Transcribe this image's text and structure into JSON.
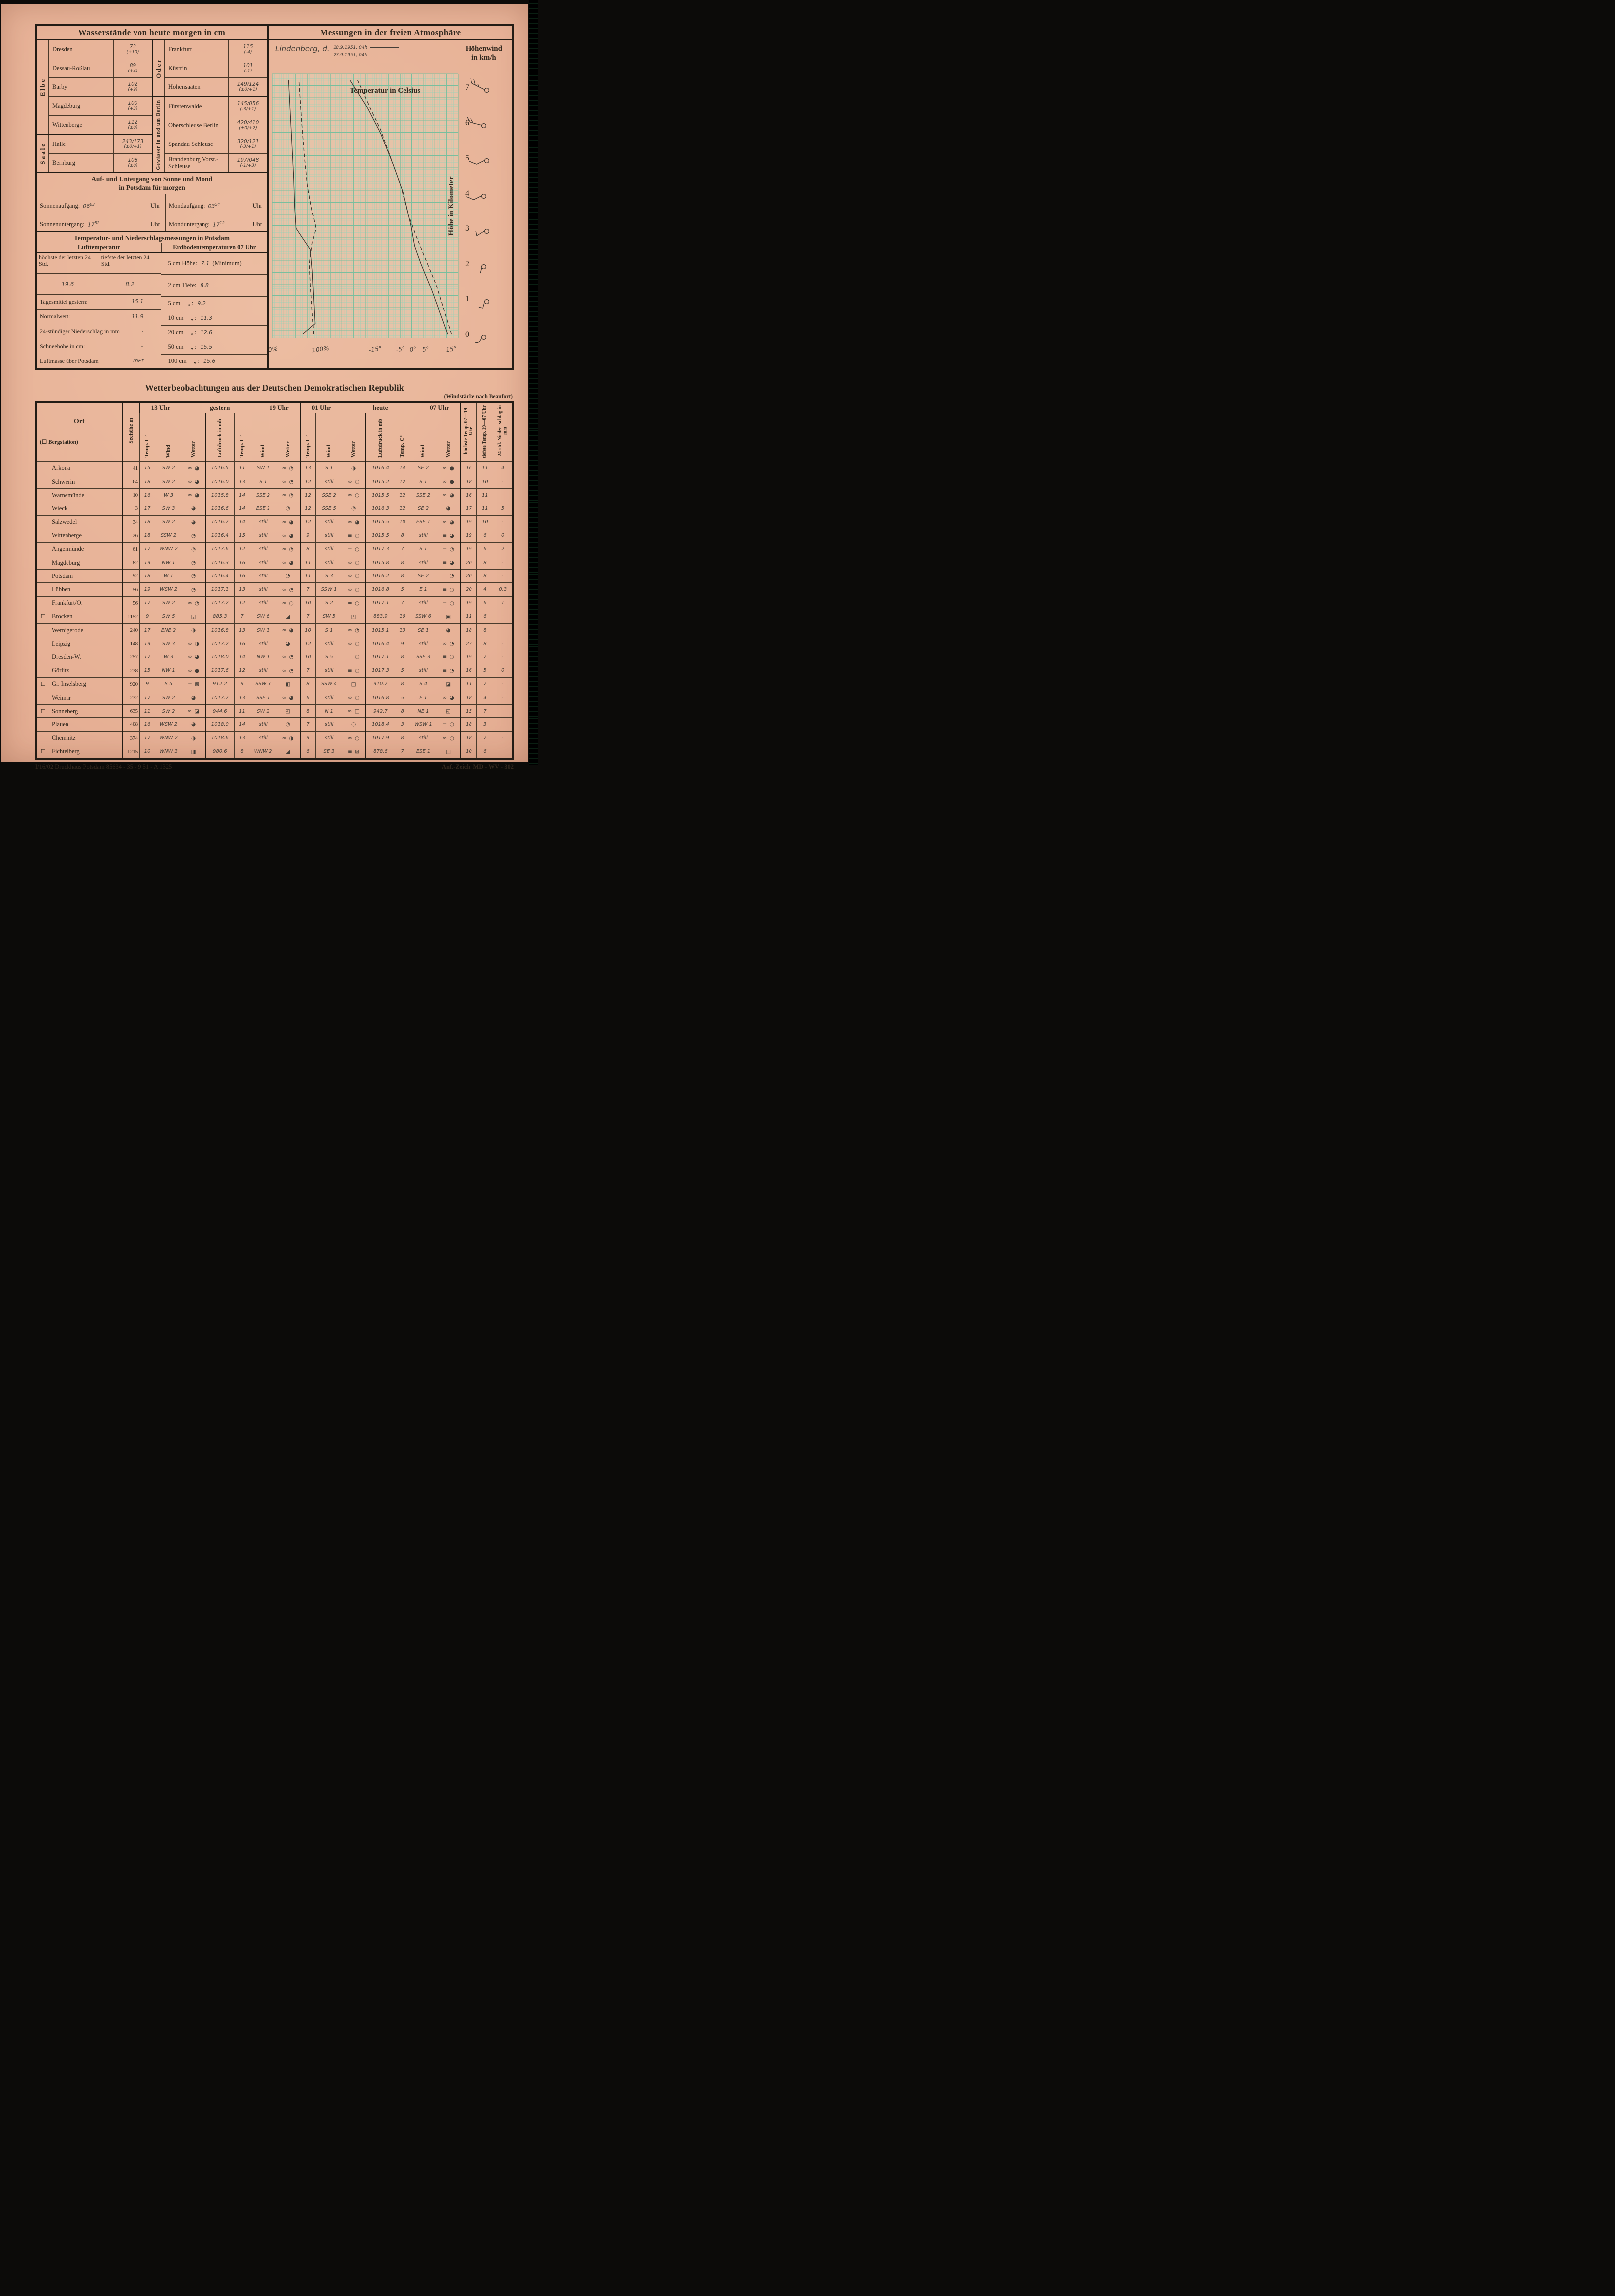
{
  "colors": {
    "paper": "#e9b69b",
    "ink": "#33291f",
    "pencil": "#453e37",
    "grid_minor": "#a4d4ba",
    "grid_major": "#7fc2a2",
    "frame": "#221c15"
  },
  "water": {
    "title": "Wasserstände von heute morgen in cm",
    "groups": [
      {
        "river": "Elbe",
        "rows": [
          {
            "name": "Dresden",
            "value": "73",
            "change": "(+10)"
          },
          {
            "name": "Dessau-Roßlau",
            "value": "89",
            "change": "(+4)"
          },
          {
            "name": "Barby",
            "value": "102",
            "change": "(+9)"
          },
          {
            "name": "Magdeburg",
            "value": "100",
            "change": "(+3)"
          },
          {
            "name": "Wittenberge",
            "value": "112",
            "change": "(±0)"
          }
        ]
      },
      {
        "river": "Saale",
        "rows": [
          {
            "name": "Halle",
            "value": "243/173",
            "change": "(±0/+1)"
          },
          {
            "name": "Bernburg",
            "value": "108",
            "change": "(±0)"
          }
        ]
      },
      {
        "river": "Oder",
        "rows": [
          {
            "name": "Frankfurt",
            "value": "115",
            "change": "(-4)"
          },
          {
            "name": "Küstrin",
            "value": "101",
            "change": "(-1)"
          },
          {
            "name": "Hohensaaten",
            "value": "149/124",
            "change": "(±0/+1)"
          }
        ]
      },
      {
        "river": "Gewässer in und um Berlin",
        "rows": [
          {
            "name": "Fürstenwalde",
            "value": "145/056",
            "change": "(-3/+1)"
          },
          {
            "name": "Oberschleuse Berlin",
            "value": "420/410",
            "change": "(±0/+2)"
          },
          {
            "name": "Spandau Schleuse",
            "value": "320/121",
            "change": "(-3/+1)"
          },
          {
            "name": "Brandenburg Vorst.-Schleuse",
            "value": "197/048",
            "change": "(-1/+3)"
          }
        ]
      }
    ]
  },
  "sunmoon": {
    "title_line1": "Auf- und Untergang von Sonne und Mond",
    "title_line2": "in Potsdam für morgen",
    "uhr": "Uhr",
    "entries": [
      {
        "label": "Sonnenaufgang:",
        "h": "06",
        "m": "03"
      },
      {
        "label": "Mondaufgang:",
        "h": "03",
        "m": "54"
      },
      {
        "label": "Sonnenuntergang:",
        "h": "17",
        "m": "52"
      },
      {
        "label": "Monduntergang:",
        "h": "17",
        "m": "12"
      }
    ]
  },
  "potsdam": {
    "title": "Temperatur- und Niederschlagsmessungen in Potsdam",
    "col_left": "Lufttemperatur",
    "col_right": "Erdbodentemperaturen 07 Uhr",
    "max_label": "höchste der letzten 24 Std.",
    "min_label": "tiefste der letzten 24 Std.",
    "max_value": "19.6",
    "min_value": "8.2",
    "left_rows": [
      {
        "label": "Tagesmittel gestern:",
        "value": "15.1"
      },
      {
        "label": "Normalwert:",
        "value": "11.9"
      },
      {
        "label": "24-stündiger Niederschlag in mm",
        "value": "·"
      },
      {
        "label": "Schneehöhe in cm:",
        "value": "–"
      },
      {
        "label": "Luftmasse über Potsdam",
        "value": "mPt"
      }
    ],
    "right_rows": [
      {
        "label": "5 cm Höhe:",
        "value": "7.1",
        "extra": "(Minimum)"
      },
      {
        "label": "2 cm Tiefe:",
        "value": "8.8",
        "extra": ""
      },
      {
        "label": "5 cm",
        "ditto": "„  :",
        "value": "9.2"
      },
      {
        "label": "10 cm",
        "ditto": "„  :",
        "value": "11.3"
      },
      {
        "label": "20 cm",
        "ditto": "„  :",
        "value": "12.6"
      },
      {
        "label": "50 cm",
        "ditto": "„  :",
        "value": "15.5"
      },
      {
        "label": "100 cm",
        "ditto": "„  :",
        "value": "15.6"
      }
    ]
  },
  "atmosphere": {
    "title": "Messungen in der freien Atmosphäre",
    "station": "Lindenberg, d.",
    "hoehenwind_line1": "Höhenwind",
    "hoehenwind_line2": "in km/h"
  },
  "chart_data": {
    "type": "line",
    "title": "Messungen in der freien Atmosphäre",
    "temp_label": "Temperatur in Celsius",
    "ylabel": "Höhe in Kilometer",
    "y_ticks": [
      7,
      6,
      5,
      4,
      3,
      2,
      1,
      0
    ],
    "x_tick_labels": [
      "0%",
      "100%",
      "-15°",
      "-5°",
      "0°",
      "5°",
      "15°"
    ],
    "ylim": [
      0,
      7.3
    ],
    "grid": "fine graph paper, green",
    "legend": [
      {
        "label": "28.9.1951, 04h",
        "style": "solid"
      },
      {
        "label": "27.9.1951, 04h",
        "style": "dashed"
      }
    ],
    "series": [
      {
        "name": "Temperatur °C 28.9.1951 04h",
        "style": "solid",
        "x_units": "degC",
        "y_units": "km",
        "points": [
          [
            13.5,
            0
          ],
          [
            10.5,
            0.6
          ],
          [
            7,
            1.3
          ],
          [
            3,
            2.0
          ],
          [
            0.5,
            2.5
          ],
          [
            -1,
            3.1
          ],
          [
            -4,
            4.0
          ],
          [
            -8,
            4.8
          ],
          [
            -13,
            5.7
          ],
          [
            -18,
            6.4
          ],
          [
            -25,
            7.2
          ]
        ]
      },
      {
        "name": "Temperatur °C 27.9.1951 04h",
        "style": "dashed",
        "x_units": "degC",
        "y_units": "km",
        "points": [
          [
            15,
            0
          ],
          [
            12,
            0.7
          ],
          [
            9,
            1.4
          ],
          [
            5,
            2.1
          ],
          [
            1,
            2.8
          ],
          [
            -2,
            3.4
          ],
          [
            -5,
            4.2
          ],
          [
            -9,
            5.0
          ],
          [
            -13,
            5.8
          ],
          [
            -17,
            6.4
          ],
          [
            -22,
            7.2
          ]
        ]
      },
      {
        "name": "Feuchte % 28.9.1951 04h",
        "style": "solid",
        "x_units": "percent",
        "y_units": "km",
        "points": [
          [
            62,
            0
          ],
          [
            88,
            0.3
          ],
          [
            85,
            1.0
          ],
          [
            82,
            1.8
          ],
          [
            78,
            2.4
          ],
          [
            48,
            3.0
          ],
          [
            45,
            3.6
          ],
          [
            43,
            4.4
          ],
          [
            40,
            5.2
          ],
          [
            36,
            6.2
          ],
          [
            32,
            7.2
          ]
        ]
      },
      {
        "name": "Feuchte % 27.9.1951 04h",
        "style": "dashed",
        "x_units": "percent",
        "y_units": "km",
        "points": [
          [
            85,
            0
          ],
          [
            82,
            0.6
          ],
          [
            78,
            1.4
          ],
          [
            76,
            2.0
          ],
          [
            82,
            2.6
          ],
          [
            90,
            3.0
          ],
          [
            80,
            3.6
          ],
          [
            72,
            4.2
          ],
          [
            66,
            5.0
          ],
          [
            60,
            6.0
          ],
          [
            54,
            7.2
          ]
        ]
      }
    ]
  },
  "observations": {
    "title": "Wetterbeobachtungen aus der Deutschen Demokratischen Republik",
    "note": "(Windstärke nach Beaufort)",
    "col_ort": "Ort",
    "col_berg": "(☐ Bergstation)",
    "col_seehoehe": "Seehöhe m",
    "group1": {
      "left": "13 Uhr",
      "mid": "gestern",
      "right": "19 Uhr"
    },
    "group2": {
      "left": "01 Uhr",
      "mid": "heute",
      "right": "07 Uhr"
    },
    "sub_headers": [
      "Temp. C°",
      "Wind",
      "Wetter",
      "Luftdruck in mb",
      "Temp. C°",
      "Wind",
      "Wetter",
      "Temp. C°",
      "Wind",
      "Wetter",
      "Luftdruck in mb",
      "Temp. C°",
      "Wind",
      "Wetter"
    ],
    "extreme_headers": [
      "höchste Temp. 07—19 Uhr",
      "tiefste Temp. 19—07 Uhr",
      "24-std. Nieder- schlag in mm"
    ],
    "rows": [
      {
        "ort": "Arkona",
        "berg": false,
        "m": "41",
        "c": [
          "15",
          "SW 2",
          "∞ ◕",
          "1016.5",
          "11",
          "SW 1",
          "∞ ◔",
          "13",
          "S 1",
          "◑",
          "1016.4",
          "14",
          "SE 2",
          "∞ ●",
          "16",
          "11",
          "4"
        ]
      },
      {
        "ort": "Schwerin",
        "berg": false,
        "m": "64",
        "c": [
          "18",
          "SW 2",
          "∞ ◕",
          "1016.0",
          "13",
          "S 1",
          "∞ ◔",
          "12",
          "still",
          "∞ ○",
          "1015.2",
          "12",
          "S 1",
          "∞ ●",
          "18",
          "10",
          "·"
        ]
      },
      {
        "ort": "Warnemünde",
        "berg": false,
        "m": "10",
        "c": [
          "16",
          "W 3",
          "∞ ◕",
          "1015.8",
          "14",
          "SSE 2",
          "∞ ◔",
          "12",
          "SSE 2",
          "∞ ○",
          "1015.5",
          "12",
          "SSE 2",
          "∞ ◕",
          "16",
          "11",
          "·"
        ]
      },
      {
        "ort": "Wieck",
        "berg": false,
        "m": "3",
        "c": [
          "17",
          "SW 3",
          "◕",
          "1016.6",
          "14",
          "ESE 1",
          "◔",
          "12",
          "SSE 5",
          "◔",
          "1016.3",
          "12",
          "SE 2",
          "◕",
          "17",
          "11",
          "5"
        ]
      },
      {
        "ort": "Salzwedel",
        "berg": false,
        "m": "34",
        "c": [
          "18",
          "SW 2",
          "◕",
          "1016.7",
          "14",
          "still",
          "∞ ◕",
          "12",
          "still",
          "∞ ◕",
          "1015.5",
          "10",
          "ESE 1",
          "∞ ◕",
          "19",
          "10",
          "·"
        ]
      },
      {
        "ort": "Wittenberge",
        "berg": false,
        "m": "26",
        "c": [
          "18",
          "SSW 2",
          "◔",
          "1016.4",
          "15",
          "still",
          "∞ ◕",
          "9",
          "still",
          "≡ ○",
          "1015.5",
          "8",
          "still",
          "≡ ◕",
          "19",
          "6",
          "0"
        ]
      },
      {
        "ort": "Angermünde",
        "berg": false,
        "m": "61",
        "c": [
          "17",
          "WNW 2",
          "◔",
          "1017.6",
          "12",
          "still",
          "∞ ◔",
          "8",
          "still",
          "≡ ○",
          "1017.3",
          "7",
          "S 1",
          "≡ ◔",
          "19",
          "6",
          "2"
        ]
      },
      {
        "ort": "Magdeburg",
        "berg": false,
        "m": "82",
        "c": [
          "19",
          "NW 1",
          "◔",
          "1016.3",
          "16",
          "still",
          "∞ ◕",
          "11",
          "still",
          "∞ ○",
          "1015.8",
          "8",
          "still",
          "≡ ◕",
          "20",
          "8",
          "·"
        ]
      },
      {
        "ort": "Potsdam",
        "berg": false,
        "m": "92",
        "c": [
          "18",
          "W 1",
          "◔",
          "1016.4",
          "16",
          "still",
          "◔",
          "11",
          "S 3",
          "∞ ○",
          "1016.2",
          "8",
          "SE 2",
          "= ◔",
          "20",
          "8",
          "·"
        ]
      },
      {
        "ort": "Lübben",
        "berg": false,
        "m": "56",
        "c": [
          "19",
          "WSW 2",
          "◔",
          "1017.1",
          "13",
          "still",
          "∞ ◔",
          "7",
          "SSW 1",
          "∞ ○",
          "1016.8",
          "5",
          "E 1",
          "≡ ○",
          "20",
          "4",
          "0.3"
        ]
      },
      {
        "ort": "Frankfurt/O.",
        "berg": false,
        "m": "56",
        "c": [
          "17",
          "SW 2",
          "∞ ◔",
          "1017.2",
          "12",
          "still",
          "∞ ○",
          "10",
          "S 2",
          "= ○",
          "1017.1",
          "7",
          "still",
          "≡ ○",
          "19",
          "6",
          "1"
        ]
      },
      {
        "ort": "Brocken",
        "berg": true,
        "m": "1152",
        "c": [
          "9",
          "SW 5",
          "◱",
          "885.3",
          "7",
          "SW 6",
          "◪",
          "7",
          "SW 5",
          "◰",
          "883.9",
          "10",
          "SSW 6",
          "▣",
          "11",
          "6",
          "·"
        ]
      },
      {
        "ort": "Wernigerode",
        "berg": false,
        "m": "240",
        "c": [
          "17",
          "ENE 2",
          "◑",
          "1016.8",
          "13",
          "SW 1",
          "∞ ◕",
          "10",
          "S 1",
          "∞ ◔",
          "1015.1",
          "13",
          "SE 1",
          "◕",
          "18",
          "8",
          "·"
        ]
      },
      {
        "ort": "Leipzig",
        "berg": false,
        "m": "148",
        "c": [
          "19",
          "SW 3",
          "∞ ◑",
          "1017.2",
          "16",
          "still",
          "◕",
          "12",
          "still",
          "∞ ○",
          "1016.4",
          "9",
          "still",
          "∞ ◔",
          "23",
          "8",
          "·"
        ]
      },
      {
        "ort": "Dresden-W.",
        "berg": false,
        "m": "257",
        "c": [
          "17",
          "W 3",
          "∞ ◕",
          "1018.0",
          "14",
          "NW 1",
          "∞ ◔",
          "10",
          "S 5",
          "= ○",
          "1017.1",
          "8",
          "SSE 3",
          "≡ ○",
          "19",
          "7",
          "·"
        ]
      },
      {
        "ort": "Görlitz",
        "berg": false,
        "m": "238",
        "c": [
          "15",
          "NW 1",
          "∞ ●",
          "1017.6",
          "12",
          "still",
          "∞ ◔",
          "7",
          "still",
          "≡ ○",
          "1017.3",
          "5",
          "still",
          "≡ ◔",
          "16",
          "5",
          "0"
        ]
      },
      {
        "ort": "Gr. Inselsberg",
        "berg": true,
        "m": "920",
        "c": [
          "9",
          "S 5",
          "≡ ⊠",
          "912.2",
          "9",
          "SSW 3",
          "◧",
          "8",
          "SSW 4",
          "□",
          "910.7",
          "8",
          "S 4",
          "◪",
          "11",
          "7",
          "·"
        ]
      },
      {
        "ort": "Weimar",
        "berg": false,
        "m": "232",
        "c": [
          "17",
          "SW 2",
          "◕",
          "1017.7",
          "13",
          "SSE 1",
          "∞ ◕",
          "6",
          "still",
          "∞ ○",
          "1016.8",
          "5",
          "E 1",
          "∞ ◕",
          "18",
          "4",
          "·"
        ]
      },
      {
        "ort": "Sonneberg",
        "berg": true,
        "m": "635",
        "c": [
          "11",
          "SW 2",
          "∞ ◪",
          "944.6",
          "11",
          "SW 2",
          "◰",
          "8",
          "N 1",
          "∞ □",
          "942.7",
          "8",
          "NE 1",
          "◱",
          "15",
          "7",
          "·"
        ]
      },
      {
        "ort": "Plauen",
        "berg": false,
        "m": "408",
        "c": [
          "16",
          "WSW 2",
          "◕",
          "1018.0",
          "14",
          "still",
          "◔",
          "7",
          "still",
          "○",
          "1018.4",
          "3",
          "WSW 1",
          "≡ ○",
          "18",
          "3",
          "·"
        ]
      },
      {
        "ort": "Chemnitz",
        "berg": false,
        "m": "374",
        "c": [
          "17",
          "WNW 2",
          "◑",
          "1018.6",
          "13",
          "still",
          "∞ ◑",
          "9",
          "still",
          "∞ ○",
          "1017.9",
          "8",
          "still",
          "∞ ○",
          "18",
          "7",
          "·"
        ]
      },
      {
        "ort": "Fichtelberg",
        "berg": true,
        "m": "1215",
        "c": [
          "10",
          "WNW 3",
          "◨",
          "980.6",
          "8",
          "WNW 2",
          "◪",
          "6",
          "SE 3",
          "≡ ⊠",
          "878.6",
          "7",
          "ESE 1",
          "□",
          "10",
          "6",
          "·"
        ]
      }
    ]
  },
  "footer": {
    "left": "I/16/02 Druckhaus Potsdam  85634 - 35 - 9 51 - A 1325",
    "right": "Anf.-Zeich. MD - WV - 302"
  }
}
